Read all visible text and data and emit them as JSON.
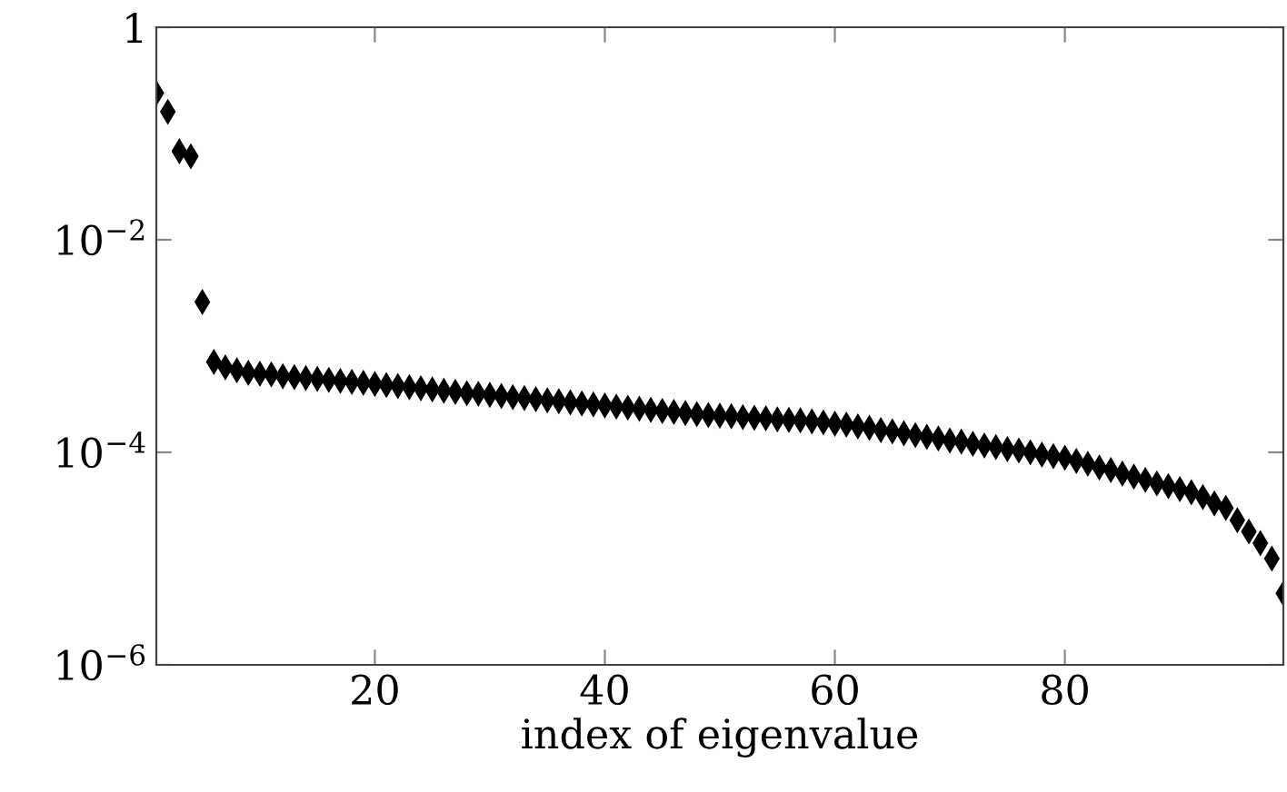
{
  "chart_data": {
    "type": "scatter",
    "xlabel": "index of eigenvalue",
    "marker": "diamond",
    "log": "y",
    "grid": false,
    "x": [
      1,
      2,
      3,
      4,
      5,
      6,
      7,
      8,
      9,
      10,
      11,
      12,
      13,
      14,
      15,
      16,
      17,
      18,
      19,
      20,
      21,
      22,
      23,
      24,
      25,
      26,
      27,
      28,
      29,
      30,
      31,
      32,
      33,
      34,
      35,
      36,
      37,
      38,
      39,
      40,
      41,
      42,
      43,
      44,
      45,
      46,
      47,
      48,
      49,
      50,
      51,
      52,
      53,
      54,
      55,
      56,
      57,
      58,
      59,
      60,
      61,
      62,
      63,
      64,
      65,
      66,
      67,
      68,
      69,
      70,
      71,
      72,
      73,
      74,
      75,
      76,
      77,
      78,
      79,
      80,
      81,
      82,
      83,
      84,
      85,
      86,
      87,
      88,
      89,
      90,
      91,
      92,
      93,
      94,
      95,
      96,
      97,
      98,
      99
    ],
    "series": [
      {
        "color": "#000000",
        "values": [
          0.24,
          0.16,
          0.068,
          0.061,
          0.0026,
          0.00071,
          0.00063,
          0.00059,
          0.00056,
          0.00055,
          0.00054,
          0.00052,
          0.00051,
          0.0005,
          0.00049,
          0.00048,
          0.00047,
          0.00046,
          0.00045,
          0.00044,
          0.00043,
          0.00042,
          0.00041,
          0.0004,
          0.00039,
          0.00038,
          0.00037,
          0.00036,
          0.000355,
          0.000347,
          0.000339,
          0.000331,
          0.000324,
          0.000316,
          0.000309,
          0.000302,
          0.000295,
          0.000288,
          0.000282,
          0.000275,
          0.000269,
          0.000263,
          0.000257,
          0.000251,
          0.000245,
          0.00024,
          0.000234,
          0.000229,
          0.000224,
          0.000221,
          0.000219,
          0.000214,
          0.000211,
          0.000209,
          0.000204,
          0.000202,
          0.0002,
          0.000195,
          0.000191,
          0.000186,
          0.000182,
          0.000175,
          0.00017,
          0.000162,
          0.000157,
          0.000151,
          0.000145,
          0.00014,
          0.000135,
          0.000129,
          0.000126,
          0.00012,
          0.000116,
          0.000112,
          0.000107,
          0.000104,
          0.0001,
          9.5e-05,
          9.2e-05,
          8.9e-05,
          8.3e-05,
          7.8e-05,
          7.2e-05,
          6.8e-05,
          6.3e-05,
          5.9e-05,
          5.5e-05,
          5.1e-05,
          4.8e-05,
          4.5e-05,
          4.2e-05,
          3.8e-05,
          3.3e-05,
          3e-05,
          2.3e-05,
          1.8e-05,
          1.4e-05,
          1e-05,
          4.7e-06
        ]
      }
    ],
    "xlim": [
      1,
      99
    ],
    "xticks": [
      20,
      40,
      60,
      80
    ],
    "ylim": [
      1e-06,
      1
    ],
    "yticks": [
      1,
      {
        "value": 0.01,
        "label": "10$^{−2}$"
      },
      {
        "value": 0.0001,
        "label": "10$^{−4}$"
      },
      {
        "value": 1e-06,
        "label": "10$^{−6}$"
      }
    ]
  }
}
